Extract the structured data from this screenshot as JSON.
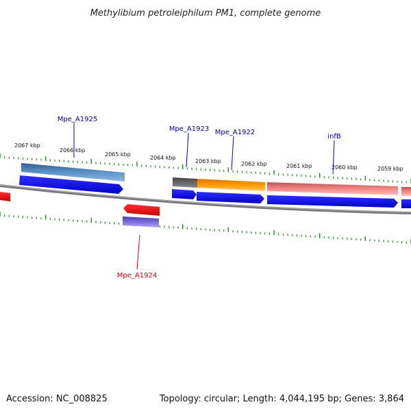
{
  "title": "Methylibium petroleiphilum PM1, complete genome",
  "footer": {
    "accession": "Accession: NC_008825",
    "summary": "Topology: circular; Length: 4,044,195 bp; Genes: 3,864"
  },
  "scale": {
    "unit": "kbp",
    "major_ticks": [
      "2067 kbp",
      "2066 kbp",
      "2065 kbp",
      "2064 kbp",
      "2063 kbp",
      "2062 kbp",
      "2061 kbp",
      "2060 kbp",
      "2059 kbp"
    ]
  },
  "gene_labels": [
    {
      "name": "Mpe_A1925",
      "color": "#0000aa"
    },
    {
      "name": "Mpe_A1923",
      "color": "#0000aa"
    },
    {
      "name": "Mpe_A1922",
      "color": "#0000aa"
    },
    {
      "name": "infB",
      "color": "#0000aa"
    },
    {
      "name": "Mpe_A1924",
      "color": "#cc0000"
    }
  ],
  "colors": {
    "tick": "#1a8c1a",
    "backbone": "#888888",
    "cds_forward": "#0000ee",
    "cds_reverse": "#ee0000",
    "feature_steelblue": "#4a7fb5",
    "feature_gray": "#666666",
    "feature_orange": "#ff9900",
    "feature_pink": "#ee7777",
    "feature_purple": "#6a5acd"
  }
}
